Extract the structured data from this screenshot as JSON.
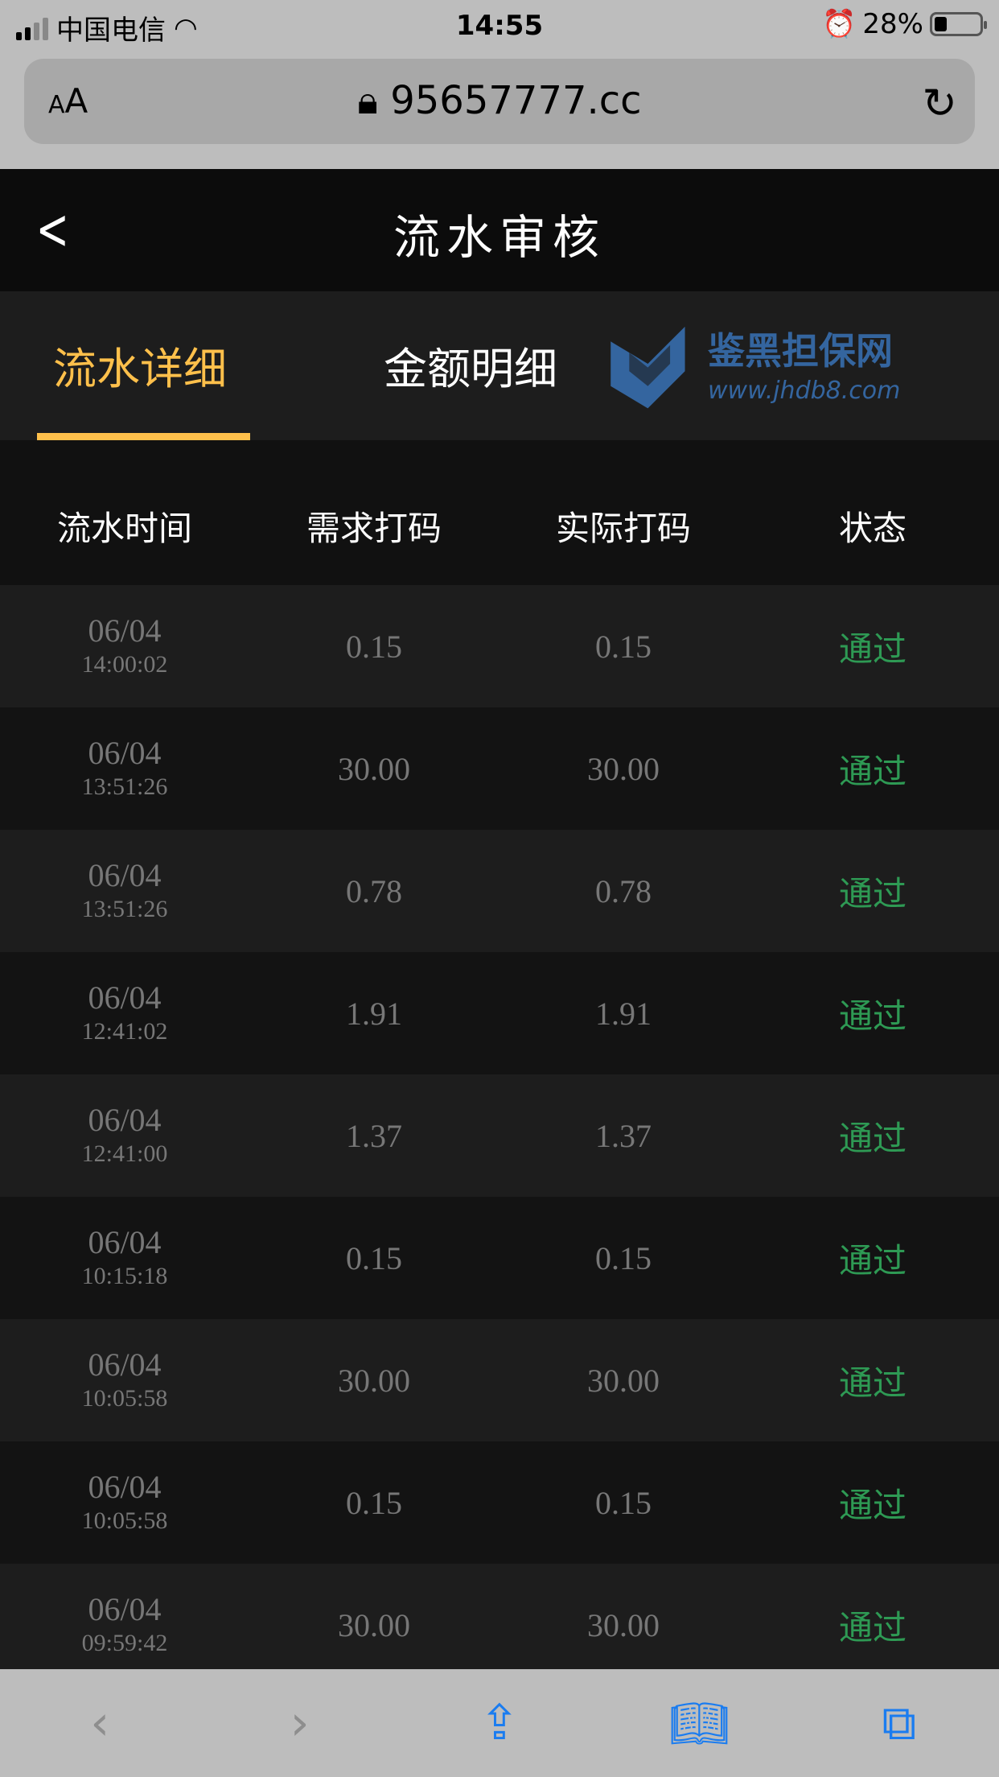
{
  "status_bar": {
    "carrier": "中国电信",
    "time": "14:55",
    "battery": "28%",
    "battery_level": 0.28
  },
  "browser": {
    "text_size": "AA",
    "url": "95657777.cc"
  },
  "header": {
    "title": "流水审核"
  },
  "tabs": [
    {
      "label": "流水详细",
      "active": true
    },
    {
      "label": "金额明细",
      "active": false
    }
  ],
  "table": {
    "columns": [
      "流水时间",
      "需求打码",
      "实际打码",
      "状态"
    ],
    "rows": [
      {
        "date": "06/04",
        "time": "14:00:02",
        "required": "0.15",
        "actual": "0.15",
        "status": "通过"
      },
      {
        "date": "06/04",
        "time": "13:51:26",
        "required": "30.00",
        "actual": "30.00",
        "status": "通过"
      },
      {
        "date": "06/04",
        "time": "13:51:26",
        "required": "0.78",
        "actual": "0.78",
        "status": "通过"
      },
      {
        "date": "06/04",
        "time": "12:41:02",
        "required": "1.91",
        "actual": "1.91",
        "status": "通过"
      },
      {
        "date": "06/04",
        "time": "12:41:00",
        "required": "1.37",
        "actual": "1.37",
        "status": "通过"
      },
      {
        "date": "06/04",
        "time": "10:15:18",
        "required": "0.15",
        "actual": "0.15",
        "status": "通过"
      },
      {
        "date": "06/04",
        "time": "10:05:58",
        "required": "30.00",
        "actual": "30.00",
        "status": "通过"
      },
      {
        "date": "06/04",
        "time": "10:05:58",
        "required": "0.15",
        "actual": "0.15",
        "status": "通过"
      },
      {
        "date": "06/04",
        "time": "09:59:42",
        "required": "30.00",
        "actual": "30.00",
        "status": "通过"
      }
    ]
  },
  "watermark": {
    "text": "鉴黑担保网",
    "url": "www.jhdb8.com"
  },
  "colors": {
    "accent": "#ffc04b",
    "status_pass": "#2e9a54",
    "ios_blue": "#1a7cf0"
  }
}
